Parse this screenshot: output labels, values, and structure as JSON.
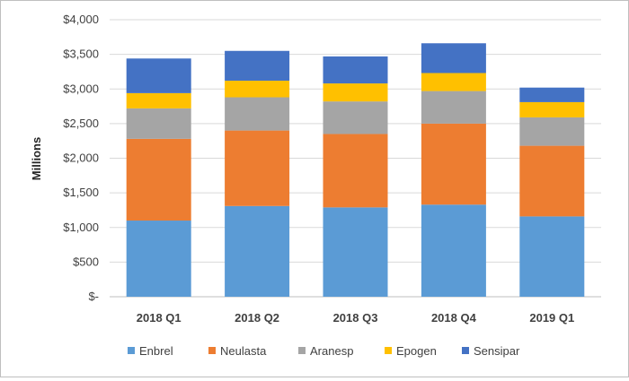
{
  "chart_data": {
    "type": "bar",
    "stacked": true,
    "categories": [
      "2018 Q1",
      "2018 Q2",
      "2018 Q3",
      "2018 Q4",
      "2019 Q1"
    ],
    "series": [
      {
        "name": "Enbrel",
        "color": "#5b9bd5",
        "values": [
          1100,
          1310,
          1290,
          1330,
          1160
        ]
      },
      {
        "name": "Neulasta",
        "color": "#ed7d31",
        "values": [
          1180,
          1090,
          1060,
          1170,
          1020
        ]
      },
      {
        "name": "Aranesp",
        "color": "#a5a5a5",
        "values": [
          440,
          480,
          470,
          470,
          410
        ]
      },
      {
        "name": "Epogen",
        "color": "#ffc000",
        "values": [
          220,
          240,
          260,
          260,
          220
        ]
      },
      {
        "name": "Sensipar",
        "color": "#4472c4",
        "values": [
          500,
          430,
          390,
          430,
          210
        ]
      }
    ],
    "ylabel": "Millions",
    "ylim": [
      0,
      4000
    ],
    "yticks": [
      0,
      500,
      1000,
      1500,
      2000,
      2500,
      3000,
      3500,
      4000
    ],
    "ytick_labels": [
      "$-",
      "$500",
      "$1,000",
      "$1,500",
      "$2,000",
      "$2,500",
      "$3,000",
      "$3,500",
      "$4,000"
    ],
    "grid": true,
    "legend_position": "bottom"
  }
}
